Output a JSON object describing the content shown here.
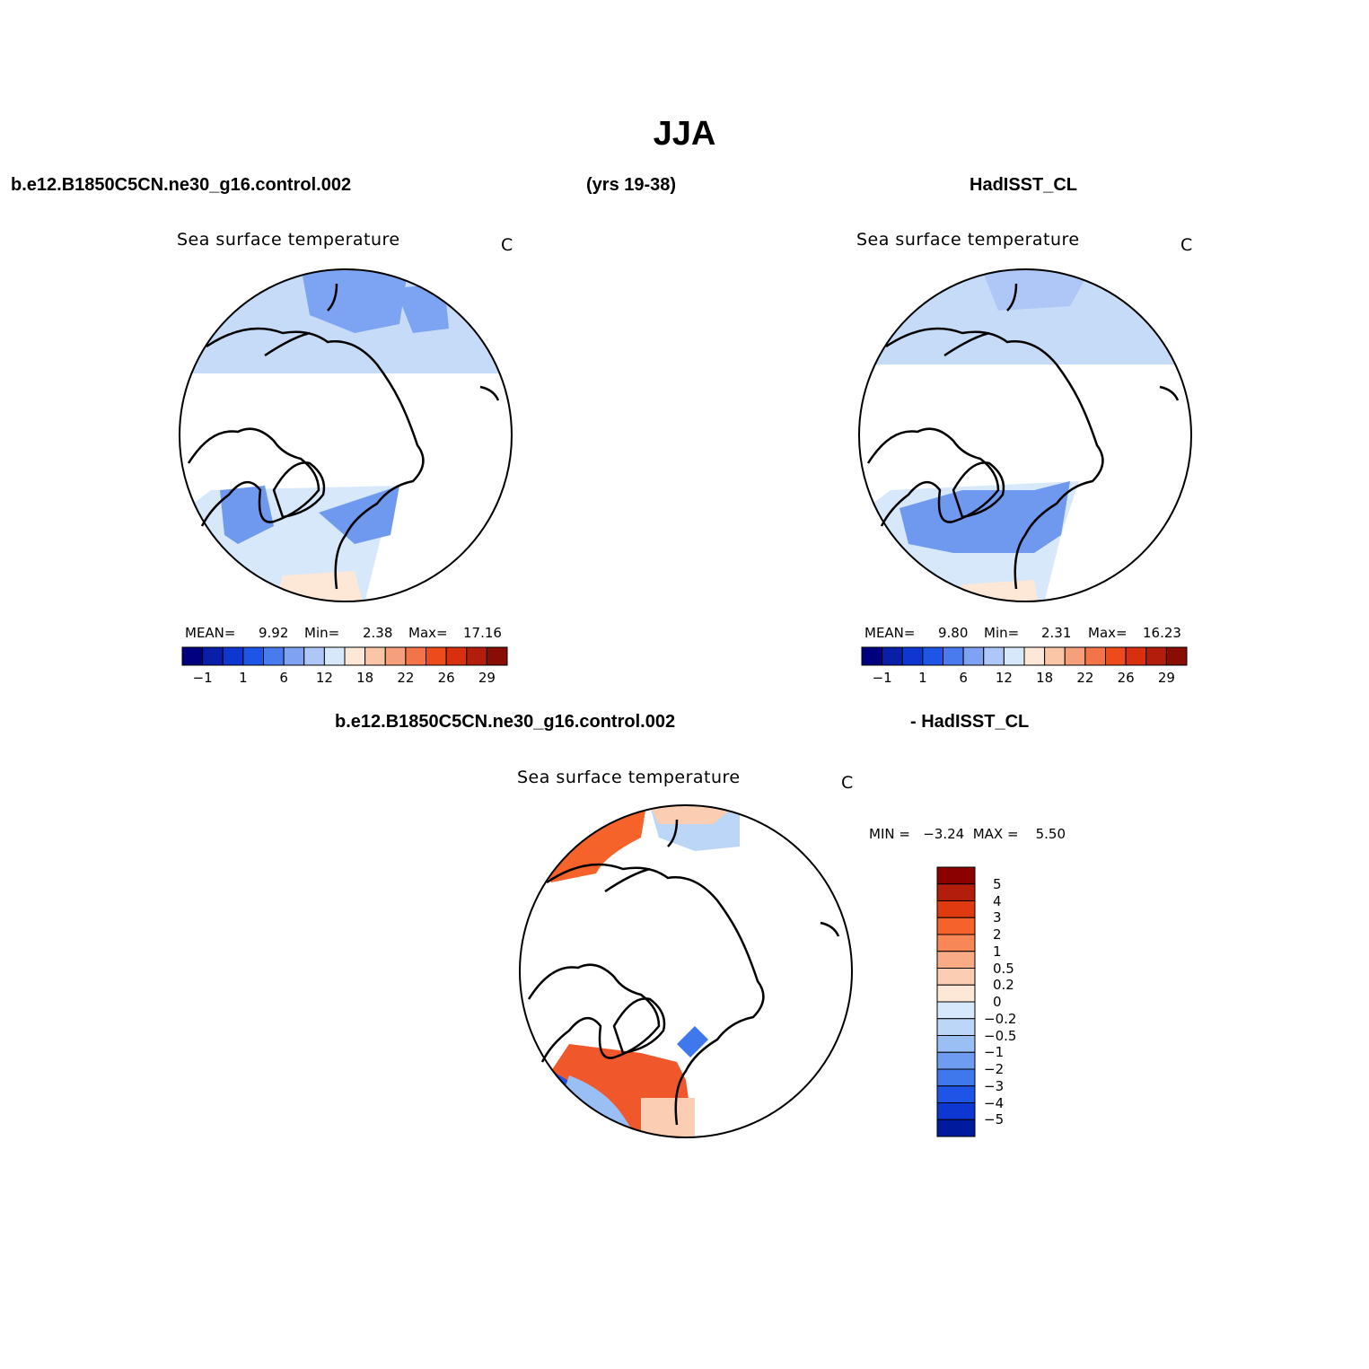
{
  "figure": {
    "title": "JJA",
    "case_name": "b.e12.B1850C5CN.ne30_g16.control.002",
    "years": "(yrs 19-38)",
    "obs_name": "HadISST_CL",
    "diff_case": "b.e12.B1850C5CN.ne30_g16.control.002",
    "diff_obs": "- HadISST_CL"
  },
  "panels": [
    {
      "id": "model",
      "title": "Sea surface temperature",
      "units": "C",
      "mean_label": "MEAN=",
      "mean": "9.92",
      "min_label": "Min=",
      "min": "2.38",
      "max_label": "Max=",
      "max": "17.16"
    },
    {
      "id": "obs",
      "title": "Sea surface temperature",
      "units": "C",
      "mean_label": "MEAN=",
      "mean": "9.80",
      "min_label": "Min=",
      "min": "2.31",
      "max_label": "Max=",
      "max": "16.23"
    },
    {
      "id": "diff",
      "title": "Sea surface temperature",
      "units": "C",
      "minmax": "MIN =   −3.24  MAX =    5.50"
    }
  ],
  "colorbar_abs": {
    "colors": [
      "#000080",
      "#0a1fa8",
      "#0d37d0",
      "#1f55e6",
      "#4a7bee",
      "#7fa3f2",
      "#aec7f6",
      "#d8e8fb",
      "#fde7d6",
      "#fbc6a8",
      "#f6a07b",
      "#f47449",
      "#ee4b1c",
      "#d8300f",
      "#b21e0b",
      "#8a0d05"
    ],
    "ticks": [
      "−1",
      "1",
      "6",
      "12",
      "18",
      "22",
      "26",
      "29"
    ]
  },
  "colorbar_diff": {
    "colors": [
      "#8b0000",
      "#b21e0b",
      "#e03b10",
      "#f5622a",
      "#f88656",
      "#f9ab86",
      "#fbcdb2",
      "#fde8d8",
      "#d6e8fb",
      "#bcd6f8",
      "#9abff4",
      "#6e9cf0",
      "#3f78ec",
      "#1f55e6",
      "#0d37d0",
      "#001a9e"
    ],
    "labels": [
      "5",
      "4",
      "3",
      "2",
      "1",
      "0.5",
      "0.2",
      "0",
      "−0.2",
      "−0.5",
      "−1",
      "−2",
      "−3",
      "−4",
      "−5"
    ]
  },
  "chart_data": [
    {
      "type": "heatmap",
      "title": "Sea surface temperature",
      "units": "C",
      "stats": {
        "mean": 9.92,
        "min": 2.38,
        "max": 17.16
      },
      "levels": [
        -1,
        1,
        6,
        12,
        18,
        22,
        26,
        29
      ]
    },
    {
      "type": "heatmap",
      "title": "Sea surface temperature",
      "units": "C",
      "stats": {
        "mean": 9.8,
        "min": 2.31,
        "max": 16.23
      },
      "levels": [
        -1,
        1,
        6,
        12,
        18,
        22,
        26,
        29
      ]
    },
    {
      "type": "heatmap",
      "title": "Sea surface temperature",
      "units": "C",
      "stats": {
        "min": -3.24,
        "max": 5.5
      },
      "levels": [
        5,
        4,
        3,
        2,
        1,
        0.5,
        0.2,
        0,
        -0.2,
        -0.5,
        -1,
        -2,
        -3,
        -4,
        -5
      ]
    }
  ]
}
